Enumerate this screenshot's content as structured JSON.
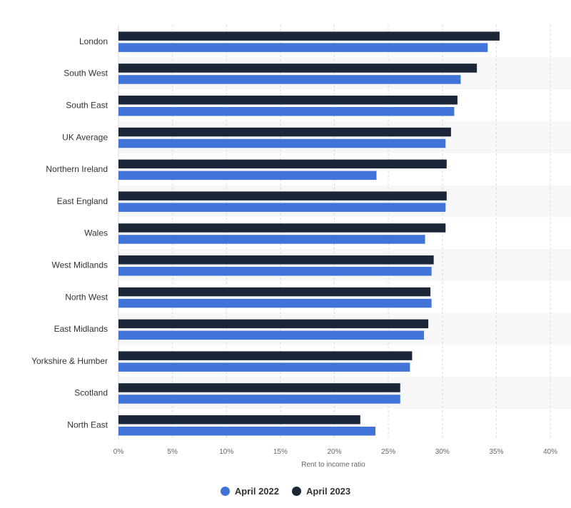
{
  "colors": {
    "series_2022": "#4074d9",
    "series_2023": "#1b2638",
    "grid": "#d9d9d9",
    "band": "#f7f7f7"
  },
  "legend": {
    "items": [
      {
        "label": "April 2022",
        "color": "#4074d9"
      },
      {
        "label": "April 2023",
        "color": "#1b2638"
      }
    ]
  },
  "chart_data": {
    "type": "bar",
    "orientation": "horizontal",
    "title": "",
    "xlabel": "Rent to income ratio",
    "ylabel": "",
    "xlim": [
      0,
      40
    ],
    "xticks": [
      0,
      5,
      10,
      15,
      20,
      25,
      30,
      35,
      40
    ],
    "tick_labels": [
      "0%",
      "5%",
      "10%",
      "15%",
      "20%",
      "25%",
      "30%",
      "35%",
      "40%"
    ],
    "grid": true,
    "legend_position": "bottom",
    "categories": [
      "London",
      "South West",
      "South East",
      "UK Average",
      "Northern Ireland",
      "East England",
      "Wales",
      "West Midlands",
      "North West",
      "East Midlands",
      "Yorkshire & Humber",
      "Scotland",
      "North East"
    ],
    "series": [
      {
        "name": "April 2023",
        "values": [
          35.3,
          33.2,
          31.4,
          30.8,
          30.4,
          30.4,
          30.3,
          29.2,
          28.9,
          28.7,
          27.2,
          26.1,
          22.4
        ]
      },
      {
        "name": "April 2022",
        "values": [
          34.2,
          31.7,
          31.1,
          30.3,
          23.9,
          30.3,
          28.4,
          29.0,
          29.0,
          28.3,
          27.0,
          26.1,
          23.8
        ]
      }
    ]
  }
}
